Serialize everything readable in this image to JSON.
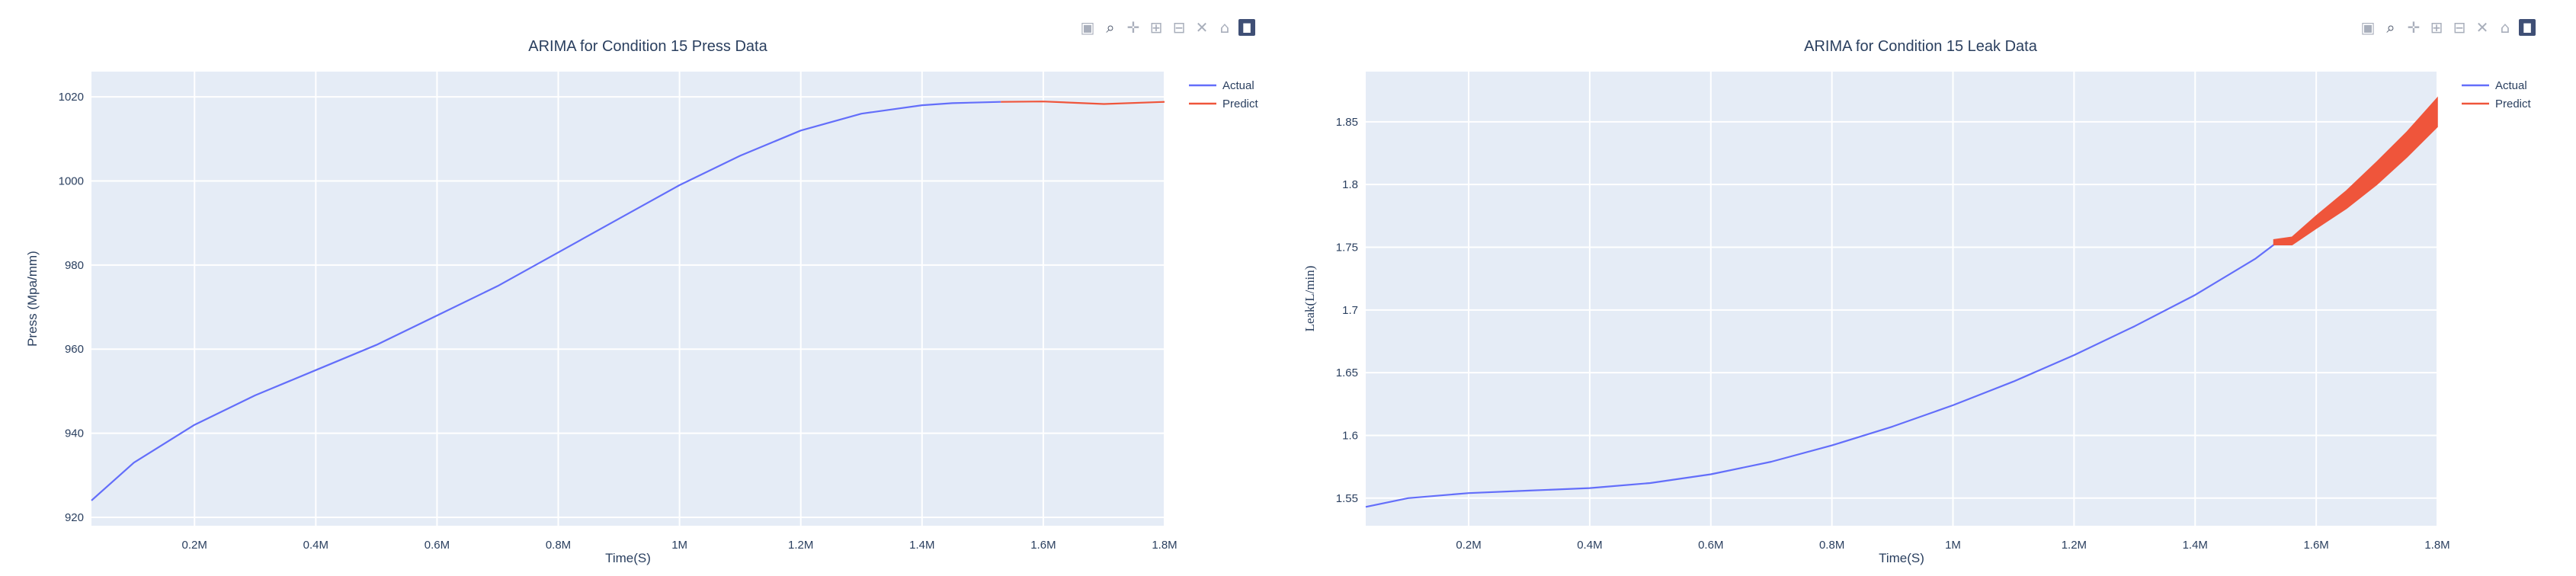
{
  "modebar": {
    "icons": [
      "camera-icon",
      "zoom-icon",
      "pan-icon",
      "zoom-in-icon",
      "zoom-out-icon",
      "autoscale-icon",
      "reset-axes-icon",
      "plotly-logo-icon"
    ]
  },
  "chart_data": [
    {
      "type": "line",
      "title": "ARIMA for Condition 15 Press Data",
      "xlabel": "Time(S)",
      "ylabel": "Press (Mpa/mm)",
      "xlim": [
        30000,
        1800000
      ],
      "ylim": [
        918,
        1026
      ],
      "x_tick_values": [
        200000,
        400000,
        600000,
        800000,
        1000000,
        1200000,
        1400000,
        1600000,
        1800000
      ],
      "x_tick_labels": [
        "0.2M",
        "0.4M",
        "0.6M",
        "0.8M",
        "1M",
        "1.2M",
        "1.4M",
        "1.6M",
        "1.8M"
      ],
      "y_tick_values": [
        920,
        940,
        960,
        980,
        1000,
        1020
      ],
      "y_tick_labels": [
        "920",
        "940",
        "960",
        "980",
        "1000",
        "1020"
      ],
      "grid": true,
      "legend_position": "top-right",
      "series": [
        {
          "name": "Actual",
          "color": "#636efa",
          "x": [
            30000,
            100000,
            200000,
            300000,
            400000,
            500000,
            600000,
            700000,
            800000,
            900000,
            1000000,
            1100000,
            1200000,
            1300000,
            1400000,
            1450000,
            1500000,
            1530000
          ],
          "y": [
            924,
            933,
            942,
            949,
            955,
            961,
            968,
            975,
            983,
            991,
            999,
            1006,
            1012,
            1016,
            1018,
            1018.5,
            1018.7,
            1018.8
          ]
        },
        {
          "name": "Predict",
          "color": "#ef553b",
          "x": [
            1530000,
            1600000,
            1700000,
            1800000
          ],
          "y": [
            1018.8,
            1018.9,
            1018.3,
            1018.8
          ]
        }
      ]
    },
    {
      "type": "line",
      "title": "ARIMA for Condition 15 Leak Data",
      "xlabel": "Time(S)",
      "ylabel": "Leak(L/min)",
      "xlim": [
        30000,
        1800000
      ],
      "ylim": [
        1.528,
        1.89
      ],
      "x_tick_values": [
        200000,
        400000,
        600000,
        800000,
        1000000,
        1200000,
        1400000,
        1600000,
        1800000
      ],
      "x_tick_labels": [
        "0.2M",
        "0.4M",
        "0.6M",
        "0.8M",
        "1M",
        "1.2M",
        "1.4M",
        "1.6M",
        "1.8M"
      ],
      "y_tick_values": [
        1.55,
        1.6,
        1.65,
        1.7,
        1.75,
        1.8,
        1.85
      ],
      "y_tick_labels": [
        "1.55",
        "1.6",
        "1.65",
        "1.7",
        "1.75",
        "1.8",
        "1.85"
      ],
      "grid": true,
      "legend_position": "top-right",
      "series": [
        {
          "name": "Actual",
          "color": "#636efa",
          "x": [
            30000,
            100000,
            200000,
            300000,
            400000,
            500000,
            600000,
            700000,
            800000,
            900000,
            1000000,
            1100000,
            1200000,
            1300000,
            1400000,
            1500000,
            1530000
          ],
          "y": [
            1.543,
            1.55,
            1.554,
            1.556,
            1.558,
            1.562,
            1.569,
            1.579,
            1.592,
            1.607,
            1.624,
            1.643,
            1.664,
            1.687,
            1.712,
            1.741,
            1.752
          ]
        },
        {
          "name": "Predict",
          "color": "#ef553b",
          "band": true,
          "x": [
            1530000,
            1560000,
            1600000,
            1650000,
            1700000,
            1750000,
            1800000
          ],
          "y_upper": [
            1.756,
            1.758,
            1.775,
            1.795,
            1.818,
            1.842,
            1.869
          ],
          "y_lower": [
            1.752,
            1.752,
            1.765,
            1.781,
            1.8,
            1.822,
            1.846
          ]
        }
      ]
    }
  ]
}
